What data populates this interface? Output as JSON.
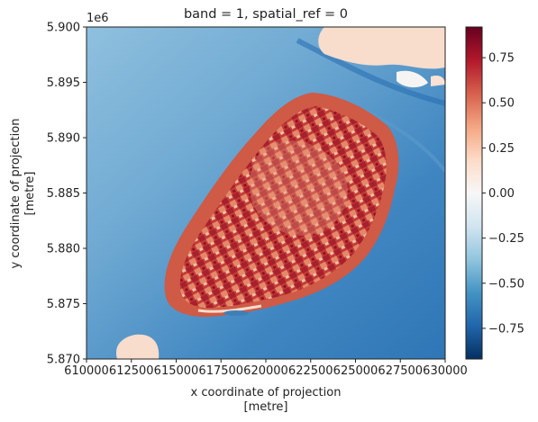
{
  "chart_data": {
    "type": "heatmap",
    "title": "band = 1, spatial_ref = 0",
    "xlabel": "x coordinate of projection",
    "xunit": "[metre]",
    "ylabel": "y coordinate of projection",
    "yunit": "[metre]",
    "x_range": [
      610000,
      630000
    ],
    "y_range": [
      5870000,
      5900000
    ],
    "y_offset_label": "1e6",
    "x_ticks": [
      610000,
      612500,
      615000,
      617500,
      620000,
      622500,
      625000,
      627500,
      630000
    ],
    "x_tick_labels": [
      "610000",
      "612500",
      "615000",
      "617500",
      "620000",
      "622500",
      "625000",
      "627500",
      "630000"
    ],
    "y_ticks": [
      5870000,
      5875000,
      5880000,
      5885000,
      5890000,
      5895000,
      5900000
    ],
    "y_tick_labels": [
      "5.870",
      "5.875",
      "5.880",
      "5.885",
      "5.890",
      "5.895",
      "5.900"
    ],
    "colormap": "RdBu_r",
    "colorbar_range": [
      -0.92,
      0.92
    ],
    "colorbar_ticks": [
      0.75,
      0.5,
      0.25,
      0.0,
      -0.25,
      -0.5,
      -0.75
    ],
    "colorbar_tick_labels": [
      "0.75",
      "0.50",
      "0.25",
      "0.00",
      "−0.25",
      "−0.50",
      "−0.75"
    ],
    "colors": {
      "cmap_stops": [
        "#053061",
        "#2166ac",
        "#4393c3",
        "#92c5de",
        "#d1e5f0",
        "#f7f7f7",
        "#fddbc7",
        "#f4a582",
        "#d6604d",
        "#b2182b",
        "#67001f"
      ],
      "water": "#3a82bf",
      "water_light": "#7db3d6",
      "island_base": "#cf5a45",
      "sand": "#f8dccc"
    }
  }
}
